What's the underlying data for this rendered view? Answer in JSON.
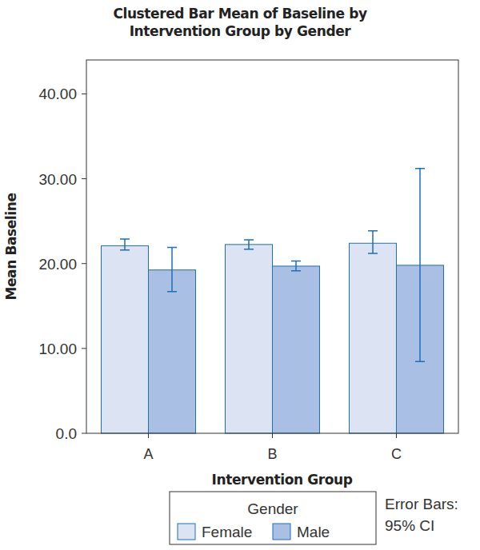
{
  "chart_data": {
    "type": "bar",
    "title": "Clustered Bar Mean of Baseline by Intervention Group by Gender",
    "x_label": "Intervention Group",
    "y_label": "Mean Baseline",
    "categories": [
      "A",
      "B",
      "C"
    ],
    "series": [
      {
        "name": "Female",
        "color": "#dce3f3",
        "values": [
          22.1,
          22.25,
          22.4
        ],
        "ci_lower": [
          21.6,
          21.7,
          21.2
        ],
        "ci_upper": [
          22.9,
          22.8,
          23.85
        ]
      },
      {
        "name": "Male",
        "color": "#a9bfe3",
        "values": [
          19.25,
          19.7,
          19.8
        ],
        "ci_lower": [
          16.7,
          19.15,
          8.45
        ],
        "ci_upper": [
          21.9,
          20.3,
          31.2
        ]
      }
    ],
    "ylim": [
      0,
      44
    ],
    "yticks": [
      {
        "value": 0,
        "label": "0.0"
      },
      {
        "value": 10,
        "label": "10.00"
      },
      {
        "value": 20,
        "label": "20.00"
      },
      {
        "value": 30,
        "label": "30.00"
      },
      {
        "value": 40,
        "label": "40.00"
      }
    ],
    "legend_title": "Gender",
    "legend": "bottom",
    "annotations": [
      "Error Bars:",
      "95% CI"
    ]
  }
}
